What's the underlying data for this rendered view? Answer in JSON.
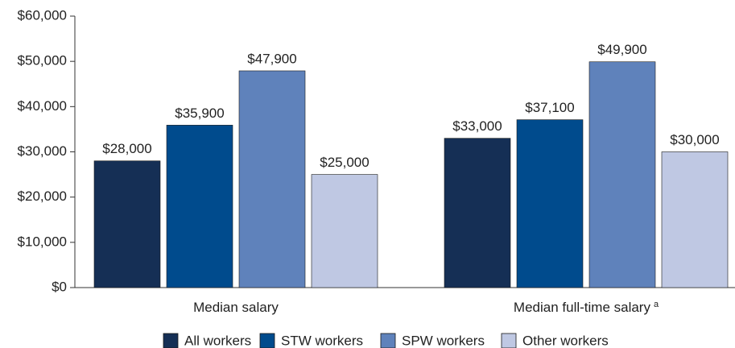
{
  "chart_data": {
    "type": "bar",
    "categories": [
      "Median salary",
      "Median full-time salary"
    ],
    "category_notes": {
      "1": "a"
    },
    "series": [
      {
        "name": "All workers",
        "color": "#152f55",
        "values": [
          28000,
          33000
        ],
        "value_labels": [
          "$28,000",
          "$33,000"
        ]
      },
      {
        "name": "STW workers",
        "color": "#004b8d",
        "values": [
          35900,
          37100
        ],
        "value_labels": [
          "$35,900",
          "$37,100"
        ]
      },
      {
        "name": "SPW workers",
        "color": "#5f82bb",
        "values": [
          47900,
          49900
        ],
        "value_labels": [
          "$47,900",
          "$49,900"
        ]
      },
      {
        "name": "Other workers",
        "color": "#bfc8e3",
        "values": [
          25000,
          30000
        ],
        "value_labels": [
          "$25,000",
          "$30,000"
        ]
      }
    ],
    "ylim": [
      0,
      60000
    ],
    "yticks": [
      {
        "value": 0,
        "label": "$0"
      },
      {
        "value": 10000,
        "label": "$10,000"
      },
      {
        "value": 20000,
        "label": "$20,000"
      },
      {
        "value": 30000,
        "label": "$30,000"
      },
      {
        "value": 40000,
        "label": "$40,000"
      },
      {
        "value": 50000,
        "label": "$50,000"
      },
      {
        "value": 60000,
        "label": "$60,000"
      }
    ],
    "grid": false,
    "legend": "bottom"
  }
}
